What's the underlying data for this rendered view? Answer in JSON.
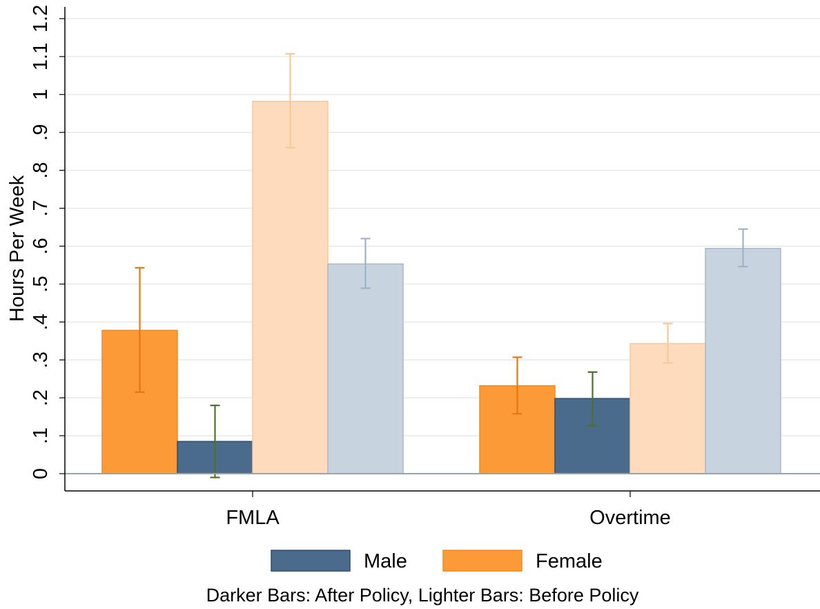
{
  "chart_data": {
    "type": "bar",
    "ylabel": "Hours Per Week",
    "ylim": [
      0,
      1.2
    ],
    "yticks": [
      {
        "value": 0,
        "label": "0"
      },
      {
        "value": 0.1,
        "label": ".1"
      },
      {
        "value": 0.2,
        "label": ".2"
      },
      {
        "value": 0.3,
        "label": ".3"
      },
      {
        "value": 0.4,
        "label": ".4"
      },
      {
        "value": 0.5,
        "label": ".5"
      },
      {
        "value": 0.6,
        "label": ".6"
      },
      {
        "value": 0.7,
        "label": ".7"
      },
      {
        "value": 0.8,
        "label": ".8"
      },
      {
        "value": 0.9,
        "label": ".9"
      },
      {
        "value": 1.0,
        "label": "1"
      },
      {
        "value": 1.1,
        "label": "1.1"
      },
      {
        "value": 1.2,
        "label": "1.2"
      }
    ],
    "grid": true,
    "categories": [
      "FMLA",
      "Overtime"
    ],
    "series": [
      {
        "name": "Female (After Policy)",
        "color": "#fd9a38",
        "edge": "#f08a22",
        "err_color": "#e07b10",
        "opacity": 1,
        "values": [
          0.378,
          0.232
        ],
        "ci_low": [
          0.215,
          0.158
        ],
        "ci_high": [
          0.543,
          0.307
        ]
      },
      {
        "name": "Male (After Policy)",
        "color": "#4a6b8c",
        "edge": "#2f4e6e",
        "err_color": "#4f6f2a",
        "opacity": 1,
        "values": [
          0.085,
          0.198
        ],
        "ci_low": [
          -0.01,
          0.127
        ],
        "ci_high": [
          0.18,
          0.268
        ]
      },
      {
        "name": "Female (Before Policy)",
        "color": "#fedbbc",
        "edge": "#fbc99c",
        "err_color": "#fbc79a",
        "opacity": 1,
        "values": [
          0.982,
          0.343
        ],
        "ci_low": [
          0.86,
          0.292
        ],
        "ci_high": [
          1.107,
          0.396
        ]
      },
      {
        "name": "Male (Before Policy)",
        "color": "#c7d3de",
        "edge": "#a9b9c8",
        "err_color": "#9fb2c4",
        "opacity": 1,
        "values": [
          0.553,
          0.594
        ],
        "ci_low": [
          0.489,
          0.546
        ],
        "ci_high": [
          0.62,
          0.645
        ]
      }
    ],
    "legend": {
      "position": "bottom",
      "items": [
        {
          "label": "Male",
          "color": "#4a6b8c",
          "edge": "#2f4e6e"
        },
        {
          "label": "Female",
          "color": "#fd9a38",
          "edge": "#f08a22"
        }
      ]
    },
    "note": "Darker Bars: After Policy, Lighter Bars: Before Policy"
  }
}
